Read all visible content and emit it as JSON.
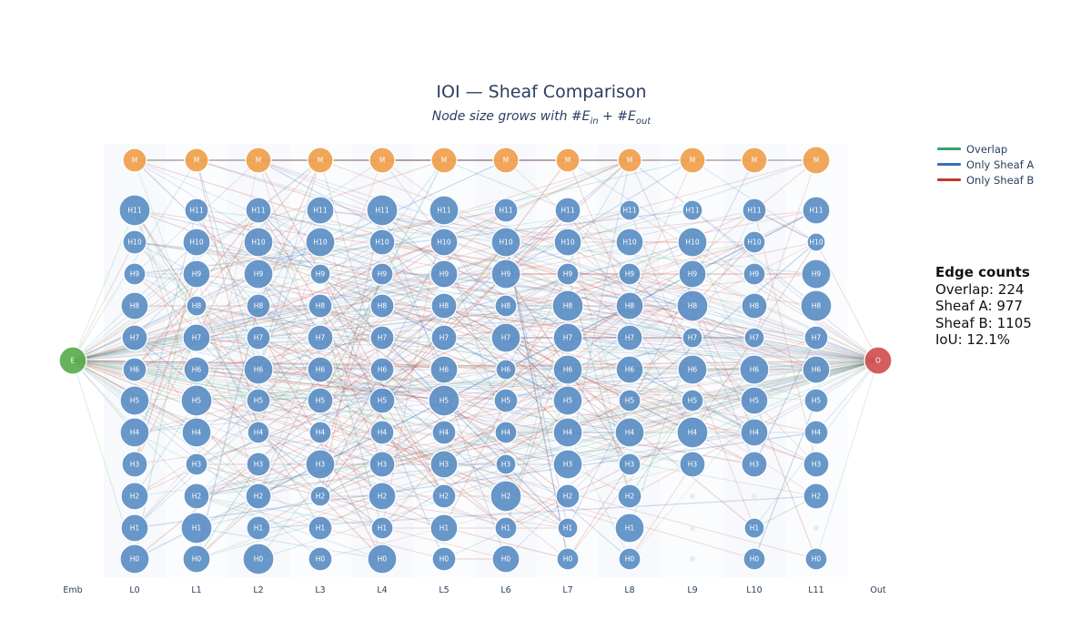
{
  "title": "IOI — Sheaf Comparison",
  "subtitle": {
    "prefix": "Node size grows with #E",
    "sub_in": "in",
    "middle": " + #E",
    "sub_out": "out"
  },
  "legend": [
    {
      "label": "Overlap",
      "color": "#3aa26a"
    },
    {
      "label": "Only Sheaf A",
      "color": "#3b6fb6"
    },
    {
      "label": "Only Sheaf B",
      "color": "#c0392b"
    }
  ],
  "stats": {
    "heading": "Edge counts",
    "overlap": "Overlap: 224",
    "sheaf_a": "Sheaf A: 977",
    "sheaf_b": "Sheaf B: 1105",
    "iou": "IoU: 12.1%"
  },
  "columns": [
    "Emb",
    "L0",
    "L1",
    "L2",
    "L3",
    "L4",
    "L5",
    "L6",
    "L7",
    "L8",
    "L9",
    "L10",
    "L11",
    "Out"
  ],
  "row_labels": [
    "M",
    "H11",
    "H10",
    "H9",
    "H8",
    "H7",
    "H6",
    "H5",
    "H4",
    "H3",
    "H2",
    "H1",
    "H0"
  ],
  "emb_label": "E",
  "out_label": "O",
  "colors": {
    "emb": "#5aac4e",
    "out": "#d24f4f",
    "mlp": "#f0a04b",
    "head": "#5b8ec4",
    "inactive": "#e6eaf0",
    "overlap": "#3aa26a",
    "sheaf_a": "#3b6fb6",
    "sheaf_b": "#c0392b"
  },
  "inactive_nodes": [
    {
      "layer": "L9",
      "row": "H2"
    },
    {
      "layer": "L9",
      "row": "H1"
    },
    {
      "layer": "L9",
      "row": "H0"
    },
    {
      "layer": "L10",
      "row": "H2"
    },
    {
      "layer": "L11",
      "row": "H1"
    }
  ]
}
